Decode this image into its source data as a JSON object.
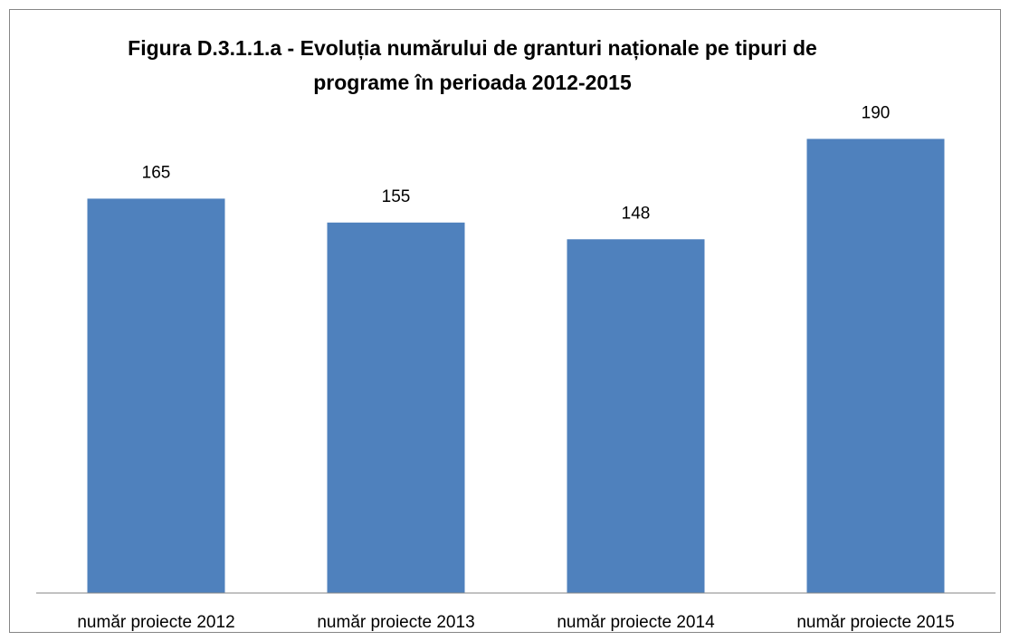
{
  "chart_data": {
    "type": "bar",
    "title": [
      "Figura D.3.1.1.a - Evoluția numărului de granturi naționale pe tipuri de",
      "programe în perioada 2012-2015"
    ],
    "categories": [
      "număr proiecte 2012",
      "număr proiecte 2013",
      "număr proiecte 2014",
      "număr proiecte 2015"
    ],
    "values": [
      165,
      155,
      148,
      190
    ],
    "color": "#4f81bd",
    "ylim": [
      0,
      200
    ]
  }
}
